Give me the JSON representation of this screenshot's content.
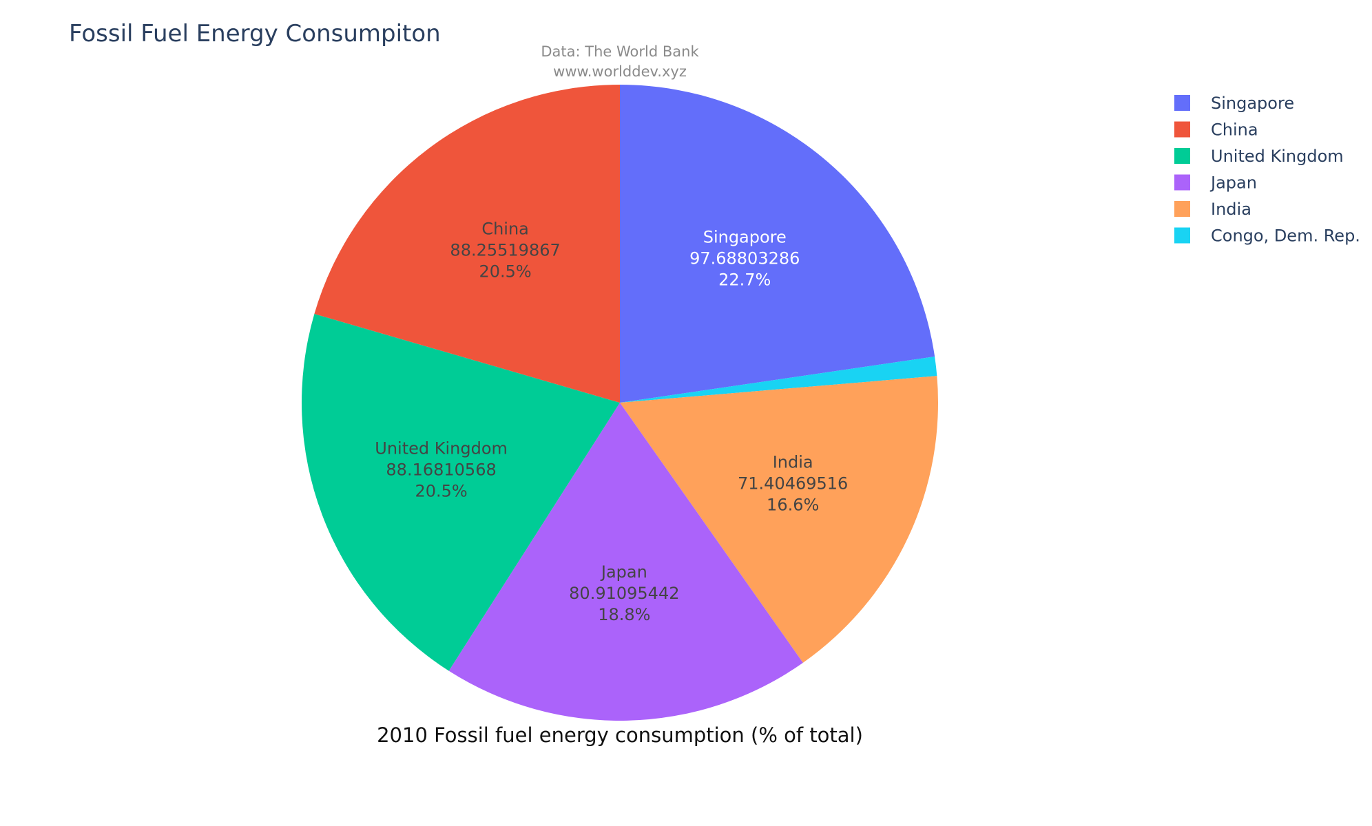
{
  "chart_data": {
    "type": "pie",
    "title": "Fossil Fuel Energy Consumpiton",
    "subtitle_lines": [
      "Data: The World Bank",
      "www.worlddev.xyz"
    ],
    "caption": "2010 Fossil fuel energy consumption (% of total)",
    "legend_position": "top-right",
    "direction": "clockwise",
    "slices": [
      {
        "label": "Singapore",
        "value": 97.68803286,
        "value_text": "97.68803286",
        "percent_text": "22.7%",
        "color": "#636efa",
        "text_color": "#ffffff"
      },
      {
        "label": "Congo, Dem. Rep.",
        "value": 4.2,
        "value_text": "",
        "percent_text": "",
        "color": "#19d3f3",
        "text_color": "#444444"
      },
      {
        "label": "India",
        "value": 71.40469516,
        "value_text": "71.40469516",
        "percent_text": "16.6%",
        "color": "#ffa15a",
        "text_color": "#444444"
      },
      {
        "label": "Japan",
        "value": 80.91095442,
        "value_text": "80.91095442",
        "percent_text": "18.8%",
        "color": "#ab63fa",
        "text_color": "#444444"
      },
      {
        "label": "United Kingdom",
        "value": 88.16810568,
        "value_text": "88.16810568",
        "percent_text": "20.5%",
        "color": "#00cc96",
        "text_color": "#444444"
      },
      {
        "label": "China",
        "value": 88.25519867,
        "value_text": "88.25519867",
        "percent_text": "20.5%",
        "color": "#ef553b",
        "text_color": "#444444"
      }
    ],
    "legend_order": [
      "Singapore",
      "China",
      "United Kingdom",
      "Japan",
      "India",
      "Congo, Dem. Rep."
    ]
  }
}
